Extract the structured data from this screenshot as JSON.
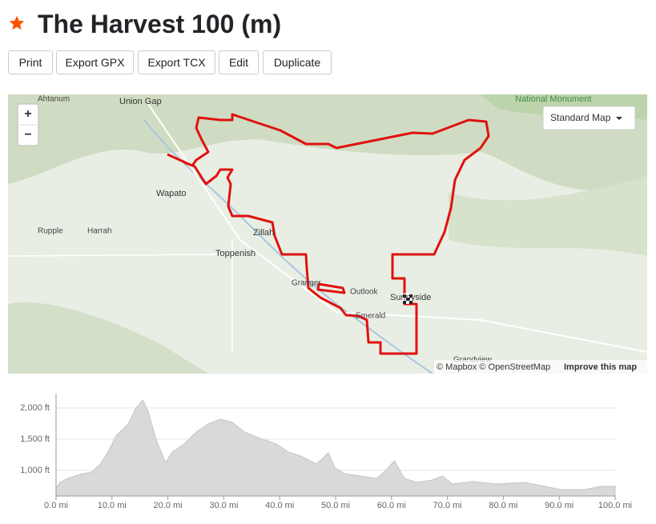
{
  "header": {
    "title": "The Harvest 100 (m)"
  },
  "toolbar": {
    "buttons": [
      "Print",
      "Export GPX",
      "Export TCX",
      "Edit",
      "Duplicate"
    ]
  },
  "map": {
    "labels": [
      "Ahtanum",
      "Union Gap",
      "National Monument",
      "Wapato",
      "Rupple",
      "Harrah",
      "Zillah",
      "Toppenish",
      "Granger",
      "Outlook",
      "Sunnyside",
      "Emerald",
      "Grandview"
    ],
    "controls": {
      "zoom_in": "+",
      "zoom_out": "−",
      "layer": "Standard Map"
    },
    "attribution": [
      "© Mapbox © OpenStreetMap",
      "Improve this map"
    ]
  },
  "chart_data": {
    "type": "area",
    "color": "#d9d9d9",
    "x": [
      0,
      0.7,
      2.1,
      4.3,
      6.4,
      7.9,
      9.3,
      10.7,
      12.9,
      14.3,
      15.5,
      16.5,
      17.9,
      19.6,
      20.8,
      22.9,
      25.1,
      27.2,
      29.4,
      31.5,
      33.7,
      36.5,
      39.4,
      41.5,
      43.7,
      46.6,
      48.7,
      49.9,
      51.6,
      54.4,
      57.3,
      58.7,
      60.5,
      62.3,
      64.5,
      67.3,
      69.1,
      70.9,
      74.5,
      78.8,
      83.8,
      87.4,
      90.3,
      94.6,
      97.4,
      100
    ],
    "values": [
      718,
      808,
      872,
      936,
      974,
      1100,
      1295,
      1551,
      1744,
      2000,
      2128,
      1936,
      1487,
      1128,
      1295,
      1423,
      1615,
      1744,
      1821,
      1769,
      1615,
      1513,
      1423,
      1295,
      1231,
      1103,
      1282,
      1038,
      949,
      910,
      872,
      974,
      1154,
      872,
      808,
      846,
      910,
      782,
      821,
      782,
      808,
      744,
      692,
      692,
      744,
      744
    ],
    "xlim": [
      0,
      100
    ],
    "ylim": [
      590,
      2230
    ],
    "xticks": [
      {
        "value": 0,
        "label": "0.0 mi"
      },
      {
        "value": 10,
        "label": "10.0 mi"
      },
      {
        "value": 20,
        "label": "20.0 mi"
      },
      {
        "value": 30,
        "label": "30.0 mi"
      },
      {
        "value": 40,
        "label": "40.0 mi"
      },
      {
        "value": 50,
        "label": "50.0 mi"
      },
      {
        "value": 60,
        "label": "60.0 mi"
      },
      {
        "value": 70,
        "label": "70.0 mi"
      },
      {
        "value": 80,
        "label": "80.0 mi"
      },
      {
        "value": 90,
        "label": "90.0 mi"
      },
      {
        "value": 100,
        "label": "100.0 mi"
      }
    ],
    "yticks": [
      {
        "value": 1000,
        "label": "1,000 ft"
      },
      {
        "value": 1500,
        "label": "1,500 ft"
      },
      {
        "value": 2000,
        "label": "2,000 ft"
      }
    ],
    "grid": true
  }
}
